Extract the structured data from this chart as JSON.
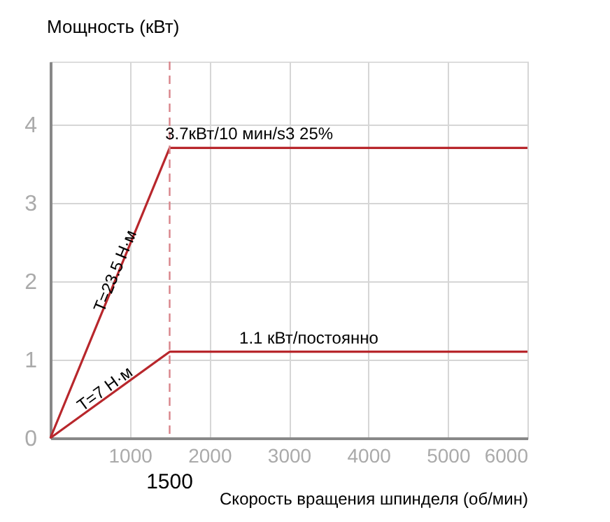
{
  "chart_data": {
    "type": "line",
    "xlabel": "Скорость вращения шпинделя (об/мин)",
    "ylabel": "Мощность (кВт)",
    "series": [
      {
        "color": "#b8272c",
        "x": [
          0,
          1500,
          6000
        ],
        "values": [
          0,
          3.7,
          3.7
        ]
      },
      {
        "color": "#b8272c",
        "x": [
          0,
          1500,
          6000
        ],
        "values": [
          0,
          1.1,
          1.1
        ]
      }
    ],
    "xlim": [
      0,
      6000
    ],
    "xticks": [
      1000,
      2000,
      3000,
      4000,
      5000,
      6000
    ],
    "ylim": [
      0,
      4.8
    ],
    "yticks": [
      0,
      1,
      2,
      3,
      4
    ],
    "grid": true,
    "marker": "none",
    "line_style": "solid",
    "ref_lines": [
      {
        "axis": "x",
        "value": 1500,
        "label": "1500",
        "color": "#d9848a",
        "line_style": "dashed"
      }
    ],
    "annotations": [
      {
        "text": "3.7кВт/10 мин/s3 25%",
        "x": 2500,
        "y": 3.7
      },
      {
        "text": "1.1 кВт/постоянно",
        "x": 3250,
        "y": 1.1
      },
      {
        "text": "T=23.5 Н·м",
        "x": 900,
        "y": 2.22
      },
      {
        "text": "T=7 Н·м",
        "x": 800,
        "y": 0.59
      }
    ]
  }
}
